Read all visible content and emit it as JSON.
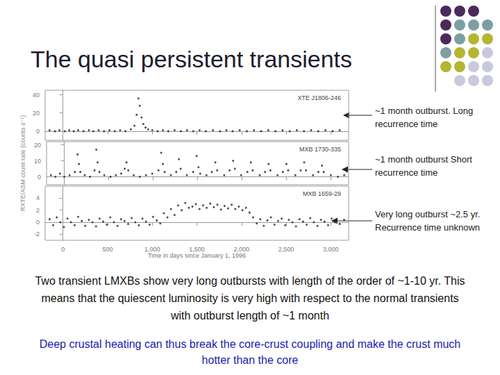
{
  "title": "The quasi persistent transients",
  "annotations": [
    "~1 month outburst. Long recurrence time",
    "~1 month outburst Short recurrence time",
    "Very long outburst ~2.5 yr. Recurrence time unknown"
  ],
  "text": [
    "Two transient LMXBs show very long outbursts with length of the order of ~1-10 yr. This means that the quiescent luminosity is very high with respect to the normal transients with outburst length of ~1 month",
    "Deep crustal heating can thus break the core-crust coupling and make the crust much hotter than the core"
  ],
  "chart_data": [
    {
      "type": "scatter",
      "title": "XTE J1806-246",
      "color": "#222222",
      "marker": "circle",
      "tick_labels": "y",
      "xlim": [
        -200,
        3200
      ],
      "xticks": [
        0,
        500,
        1000,
        1500,
        2000,
        2500,
        3000
      ],
      "ylim": [
        -10,
        45
      ],
      "yticks": [
        0,
        20,
        40
      ],
      "x": [
        -150,
        -90,
        -40,
        20,
        70,
        120,
        170,
        230,
        290,
        340,
        400,
        460,
        520,
        580,
        640,
        700,
        760,
        800,
        825,
        845,
        860,
        880,
        900,
        925,
        955,
        1000,
        1060,
        1120,
        1180,
        1250,
        1320,
        1390,
        1460,
        1530,
        1600,
        1680,
        1760,
        1830,
        1900,
        1980,
        2060,
        2140,
        2220,
        2300,
        2380,
        2460,
        2540,
        2620,
        2700,
        2780,
        2860,
        2940,
        3020,
        3100
      ],
      "values": [
        1,
        0,
        1,
        0,
        1,
        0,
        1,
        0,
        1,
        0,
        1,
        0,
        1,
        0,
        1,
        0,
        2,
        6,
        18,
        36,
        28,
        15,
        8,
        4,
        2,
        1,
        0,
        1,
        0,
        1,
        0,
        1,
        0,
        1,
        0,
        1,
        0,
        1,
        0,
        1,
        0,
        1,
        0,
        1,
        0,
        1,
        0,
        1,
        0,
        1,
        0,
        1,
        0,
        1
      ]
    },
    {
      "type": "scatter",
      "title": "MXB 1730-335",
      "color": "#222222",
      "marker": "circle",
      "tick_labels": "y",
      "ylabel": "RXTE/ASM count rate (counts s⁻¹)",
      "xlim": [
        -200,
        3200
      ],
      "xticks": [
        0,
        500,
        1000,
        1500,
        2000,
        2500,
        3000
      ],
      "ylim": [
        -5,
        22
      ],
      "yticks": [
        0,
        10,
        20
      ],
      "x": [
        -150,
        -100,
        -50,
        0,
        60,
        120,
        150,
        165,
        180,
        230,
        290,
        340,
        360,
        375,
        395,
        450,
        520,
        580,
        640,
        680,
        700,
        720,
        780,
        850,
        920,
        990,
        1060,
        1090,
        1110,
        1130,
        1200,
        1260,
        1290,
        1310,
        1380,
        1450,
        1490,
        1510,
        1530,
        1600,
        1660,
        1700,
        1720,
        1800,
        1860,
        1900,
        1920,
        1990,
        2060,
        2100,
        2120,
        2200,
        2260,
        2300,
        2320,
        2400,
        2460,
        2500,
        2520,
        2600,
        2660,
        2700,
        2720,
        2800,
        2860,
        2900,
        2920,
        3000,
        3080,
        3150
      ],
      "values": [
        1,
        0,
        2,
        0,
        1,
        3,
        14,
        8,
        3,
        1,
        0,
        4,
        17,
        9,
        3,
        1,
        0,
        1,
        2,
        5,
        9,
        4,
        1,
        0,
        1,
        2,
        4,
        15,
        8,
        3,
        1,
        3,
        11,
        5,
        1,
        3,
        13,
        6,
        2,
        1,
        3,
        9,
        4,
        1,
        4,
        10,
        5,
        1,
        3,
        9,
        4,
        1,
        3,
        8,
        4,
        1,
        3,
        8,
        4,
        1,
        4,
        9,
        4,
        1,
        3,
        7,
        3,
        1,
        0,
        1
      ]
    },
    {
      "type": "scatter",
      "title": "MXB 1659-29",
      "color": "#222222",
      "marker": "circle",
      "xlabel": "Time in days since January 1, 1996",
      "xlim": [
        -200,
        3200
      ],
      "xticks": [
        0,
        500,
        1000,
        1500,
        2000,
        2500,
        3000
      ],
      "ylim": [
        -3,
        6
      ],
      "yticks": [
        -2,
        0,
        2,
        4
      ],
      "x": [
        -150,
        -110,
        -70,
        -30,
        10,
        50,
        90,
        130,
        170,
        210,
        250,
        290,
        330,
        370,
        410,
        450,
        490,
        530,
        570,
        610,
        650,
        690,
        730,
        770,
        810,
        850,
        890,
        930,
        970,
        1010,
        1050,
        1090,
        1130,
        1170,
        1210,
        1250,
        1290,
        1330,
        1370,
        1410,
        1450,
        1490,
        1530,
        1570,
        1610,
        1650,
        1690,
        1730,
        1770,
        1810,
        1850,
        1890,
        1930,
        1970,
        2010,
        2050,
        2090,
        2130,
        2170,
        2210,
        2250,
        2290,
        2330,
        2370,
        2410,
        2450,
        2490,
        2530,
        2570,
        2610,
        2650,
        2690,
        2730,
        2770,
        2810,
        2850,
        2890,
        2930,
        2970,
        3010,
        3050,
        3100,
        3150
      ],
      "values": [
        0.5,
        -0.5,
        0.8,
        0,
        -0.8,
        0.6,
        0,
        -0.5,
        0.9,
        0.2,
        -0.6,
        0.4,
        0,
        -0.7,
        0.6,
        0.1,
        -0.4,
        0.8,
        0,
        -0.6,
        0.5,
        0.2,
        -0.3,
        0.7,
        0,
        -0.5,
        0.6,
        0.1,
        -0.4,
        0.9,
        0.3,
        -0.2,
        1.5,
        0.8,
        2.2,
        1.2,
        2.8,
        2.0,
        3.2,
        2.4,
        2.6,
        3.0,
        2.2,
        2.8,
        2.4,
        3.1,
        2.5,
        2.9,
        2.1,
        2.7,
        2.3,
        2.9,
        2.2,
        2.6,
        2.0,
        2.4,
        1.6,
        0.8,
        -0.2,
        0.5,
        -0.6,
        0.3,
        0.8,
        -0.4,
        0.2,
        0.6,
        -0.5,
        0.4,
        0,
        -0.7,
        0.5,
        0.1,
        -0.4,
        0.7,
        0,
        -0.6,
        0.4,
        0.1,
        -0.5,
        0.6,
        0,
        -0.3,
        0.4
      ]
    }
  ]
}
